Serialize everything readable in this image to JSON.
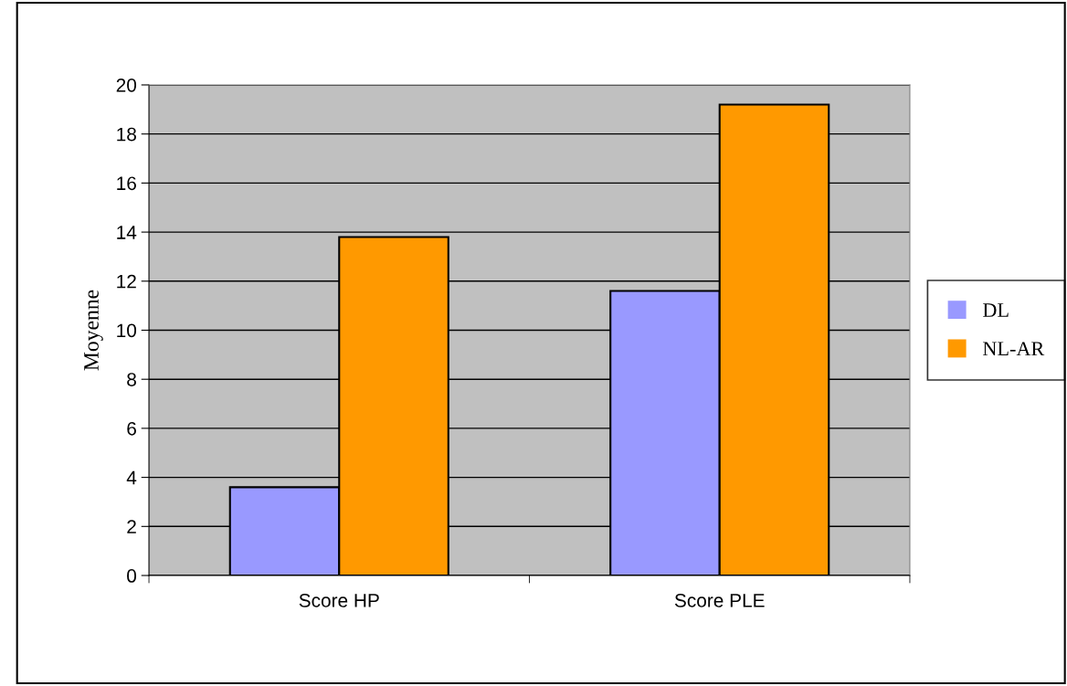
{
  "chart_data": {
    "type": "bar",
    "ylabel": "Moyenne",
    "categories": [
      "Score HP",
      "Score PLE"
    ],
    "series": [
      {
        "name": "DL",
        "color": "#9999ff",
        "values": [
          3.6,
          11.6
        ]
      },
      {
        "name": "NL-AR",
        "color": "#ff9900",
        "values": [
          13.8,
          19.2
        ]
      }
    ],
    "ylim": [
      0,
      20
    ],
    "yticks": [
      0,
      2,
      4,
      6,
      8,
      10,
      12,
      14,
      16,
      18,
      20
    ],
    "grid": "y",
    "legend": "right"
  }
}
